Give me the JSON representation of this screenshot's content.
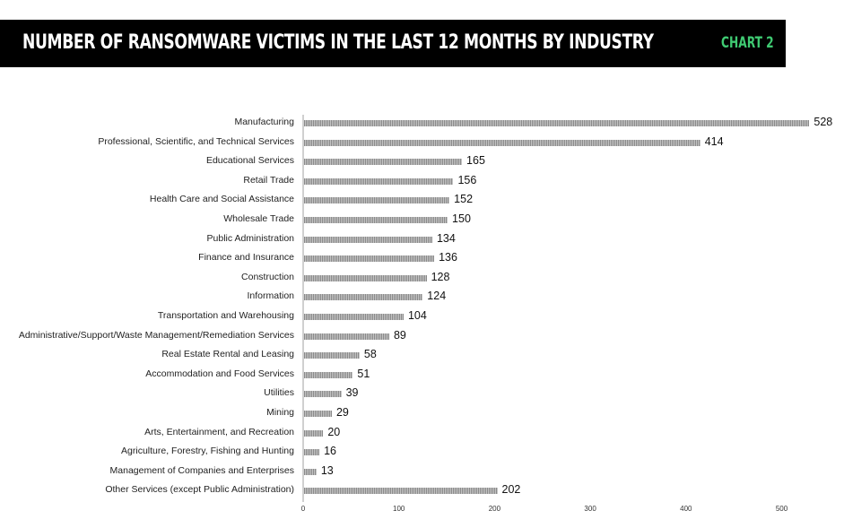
{
  "header": {
    "title": "NUMBER OF RANSOMWARE VICTIMS IN THE LAST 12 MONTHS BY INDUSTRY",
    "chart_tag": "CHART 2",
    "background_color": "#000000",
    "title_color": "#ffffff",
    "tag_color": "#3fca72"
  },
  "chart_data": {
    "type": "bar",
    "orientation": "horizontal",
    "title": "NUMBER OF RANSOMWARE VICTIMS IN THE LAST 12 MONTHS BY INDUSTRY",
    "xlabel": "",
    "ylabel": "",
    "xlim": [
      0,
      550
    ],
    "xticks": [
      "0",
      "100",
      "200",
      "300",
      "400",
      "500"
    ],
    "grid": false,
    "legend": null,
    "data_labels": true,
    "categories": [
      "Manufacturing",
      "Professional, Scientific, and Technical Services",
      "Educational Services",
      "Retail Trade",
      "Health Care and Social Assistance",
      "Wholesale Trade",
      "Public Administration",
      "Finance and Insurance",
      "Construction",
      "Information",
      "Transportation and Warehousing",
      "Administrative/Support/Waste Management/Remediation Services",
      "Real Estate Rental and Leasing",
      "Accommodation and Food Services",
      "Utilities",
      "Mining",
      "Arts, Entertainment, and Recreation",
      "Agriculture, Forestry, Fishing and Hunting",
      "Management of Companies and Enterprises",
      "Other Services (except Public Administration)"
    ],
    "values": [
      528,
      414,
      165,
      156,
      152,
      150,
      134,
      136,
      128,
      124,
      104,
      89,
      58,
      51,
      39,
      29,
      20,
      16,
      13,
      202
    ],
    "bar_color": "#8a8a8a"
  }
}
